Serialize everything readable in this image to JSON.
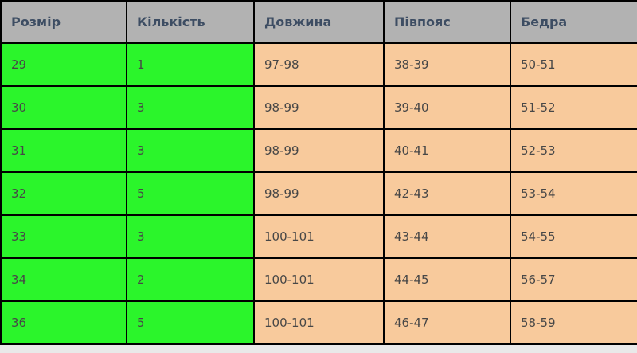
{
  "table": {
    "columns": [
      {
        "key": "size",
        "label": "Розмір",
        "group": "stock"
      },
      {
        "key": "quantity",
        "label": "Кількість",
        "group": "stock"
      },
      {
        "key": "length",
        "label": "Довжина",
        "group": "measure"
      },
      {
        "key": "half_waist",
        "label": "Півпояс",
        "group": "measure"
      },
      {
        "key": "hips",
        "label": "Бедра",
        "group": "measure"
      }
    ],
    "rows": [
      [
        "29",
        "1",
        "97-98",
        "38-39",
        "50-51"
      ],
      [
        "30",
        "3",
        "98-99",
        "39-40",
        "51-52"
      ],
      [
        "31",
        "3",
        "98-99",
        "40-41",
        "52-53"
      ],
      [
        "32",
        "5",
        "98-99",
        "42-43",
        "53-54"
      ],
      [
        "33",
        "3",
        "100-101",
        "43-44",
        "54-55"
      ],
      [
        "34",
        "2",
        "100-101",
        "44-45",
        "56-57"
      ],
      [
        "36",
        "5",
        "100-101",
        "46-47",
        "58-59"
      ]
    ]
  },
  "colors": {
    "header_bg": "#b2b2b2",
    "header_text": "#3d4d63",
    "stock_bg": "#2bf52b",
    "measure_bg": "#f8ca9c",
    "cell_text": "#474747",
    "border": "#000000"
  }
}
